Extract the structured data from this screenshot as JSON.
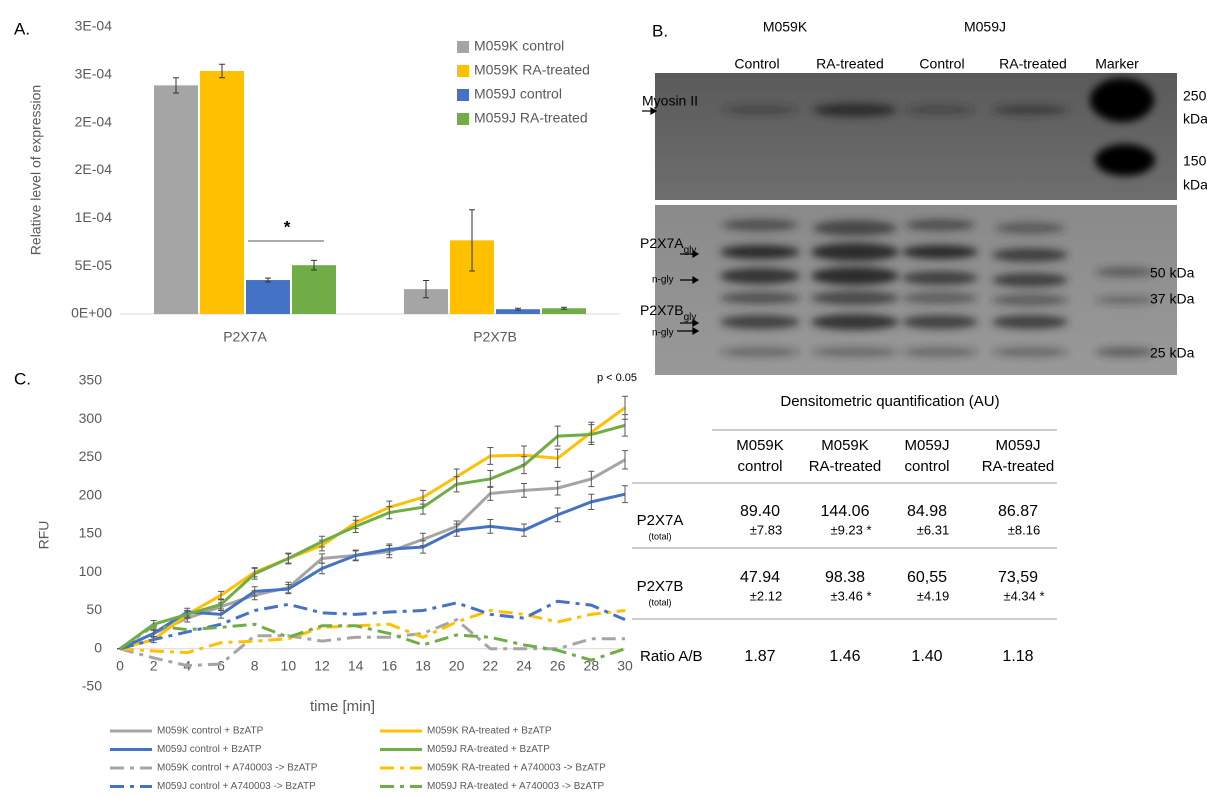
{
  "chart_data": [
    {
      "type": "bar",
      "panel": "A.",
      "y_label": "Relative level of expression",
      "categories": [
        "P2X7A",
        "P2X7B"
      ],
      "series": [
        {
          "name": "M059K control",
          "color": "#a5a5a5",
          "values": [
            0.000239,
            2.6e-05
          ],
          "errors": [
            8e-06,
            9e-06
          ]
        },
        {
          "name": "M059K RA-treated",
          "color": "#ffc000",
          "values": [
            0.000254,
            7.7e-05
          ],
          "errors": [
            7e-06,
            3.2e-05
          ]
        },
        {
          "name": "M059J control",
          "color": "#4472c4",
          "values": [
            3.55e-05,
            5e-06
          ],
          "errors": [
            2e-06,
            1e-06
          ]
        },
        {
          "name": "M059J RA-treated",
          "color": "#70ad47",
          "values": [
            5.1e-05,
            6e-06
          ],
          "errors": [
            5e-06,
            1e-06
          ]
        }
      ],
      "ylim": [
        0,
        0.0003
      ],
      "yticks": [
        {
          "value": 0,
          "label": "0E+00"
        },
        {
          "value": 5e-05,
          "label": "5E-05"
        },
        {
          "value": 0.0001,
          "label": "1E-04"
        },
        {
          "value": 0.00015,
          "label": "2E-04"
        },
        {
          "value": 0.0002,
          "label": "2E-04"
        },
        {
          "value": 0.00025,
          "label": "3E-04"
        },
        {
          "value": 0.0003,
          "label": "3E-04"
        }
      ],
      "annotation": "*",
      "legend": "top-right",
      "grid": false
    },
    {
      "type": "line",
      "panel": "C.",
      "x_label": "time [min]",
      "y_label": "RFU",
      "annotation": "p < 0.05",
      "x": [
        0,
        2,
        4,
        6,
        8,
        10,
        12,
        14,
        16,
        18,
        20,
        22,
        24,
        26,
        28,
        30
      ],
      "xlim": [
        0,
        30
      ],
      "xticks": [
        0,
        2,
        4,
        6,
        8,
        10,
        12,
        14,
        16,
        18,
        20,
        22,
        24,
        26,
        28,
        30
      ],
      "ylim": [
        -50,
        350
      ],
      "yticks": [
        -50,
        0,
        50,
        100,
        150,
        200,
        250,
        300,
        350
      ],
      "grid": false,
      "legend": "bottom",
      "series": [
        {
          "name": "M059K control + BzATP",
          "color": "#a5a5a5",
          "style": "solid",
          "values": [
            0,
            20,
            40,
            55,
            70,
            80,
            118,
            122,
            127,
            143,
            160,
            203,
            207,
            210,
            222,
            247
          ],
          "errors": [
            0,
            5,
            5,
            5,
            6,
            7,
            6,
            6,
            8,
            8,
            7,
            9,
            9,
            9,
            10,
            12
          ]
        },
        {
          "name": "M059K RA-treated + BzATP",
          "color": "#ffc000",
          "style": "solid",
          "values": [
            0,
            12,
            45,
            70,
            100,
            118,
            135,
            165,
            185,
            198,
            225,
            252,
            253,
            249,
            283,
            315
          ],
          "errors": [
            0,
            4,
            4,
            5,
            6,
            6,
            7,
            8,
            8,
            9,
            10,
            11,
            12,
            12,
            13,
            15
          ]
        },
        {
          "name": "M059J control + BzATP",
          "color": "#4472c4",
          "style": "solid",
          "values": [
            0,
            20,
            48,
            45,
            75,
            78,
            105,
            122,
            130,
            133,
            155,
            160,
            155,
            175,
            192,
            202
          ],
          "errors": [
            0,
            4,
            5,
            5,
            6,
            6,
            7,
            7,
            7,
            8,
            8,
            9,
            8,
            9,
            10,
            11
          ]
        },
        {
          "name": "M059J RA-treated + BzATP",
          "color": "#70ad47",
          "style": "solid",
          "values": [
            0,
            32,
            45,
            58,
            98,
            118,
            140,
            160,
            178,
            185,
            215,
            222,
            240,
            278,
            280,
            292
          ],
          "errors": [
            0,
            5,
            5,
            6,
            7,
            7,
            7,
            8,
            8,
            9,
            10,
            11,
            11,
            13,
            13,
            14
          ]
        },
        {
          "name": "M059K control + A740003 -> BzATP",
          "color": "#a5a5a5",
          "style": "dashdot",
          "values": [
            0,
            -12,
            -22,
            -20,
            17,
            17,
            10,
            15,
            15,
            20,
            38,
            0,
            0,
            0,
            13,
            13
          ]
        },
        {
          "name": "M059K RA-treated + A740003 -> BzATP",
          "color": "#ffc000",
          "style": "dashdot",
          "values": [
            0,
            -3,
            -5,
            8,
            10,
            13,
            28,
            30,
            32,
            15,
            35,
            50,
            45,
            35,
            45,
            50
          ]
        },
        {
          "name": "M059J control + A740003 -> BzATP",
          "color": "#4472c4",
          "style": "dashdot",
          "values": [
            0,
            12,
            22,
            32,
            50,
            58,
            47,
            45,
            48,
            50,
            60,
            45,
            40,
            62,
            57,
            38
          ]
        },
        {
          "name": "M059J RA-treated + A740003 -> BzATP",
          "color": "#70ad47",
          "style": "dashdot",
          "values": [
            0,
            30,
            25,
            28,
            32,
            15,
            30,
            30,
            20,
            5,
            18,
            15,
            5,
            -2,
            -15,
            0
          ]
        }
      ]
    }
  ],
  "blot": {
    "panel": "B.",
    "groups": [
      "M059K",
      "M059J"
    ],
    "lanes": [
      "Control",
      "RA-treated",
      "Control",
      "RA-treated",
      "Marker"
    ],
    "left_labels": [
      {
        "main": "Myosin II"
      },
      {
        "main": "P2X7A",
        "sub": "gly"
      },
      {
        "main": "n-gly"
      },
      {
        "main": "P2X7B",
        "sub": "gly"
      },
      {
        "main": "n-gly"
      }
    ],
    "right_labels": [
      [
        "250",
        "kDa"
      ],
      [
        "150",
        "kDa"
      ],
      [
        "50 kDa"
      ],
      [
        "37 kDa"
      ],
      [
        "25 kDa"
      ]
    ]
  },
  "table": {
    "title": "Densitometric quantification (AU)",
    "columns": [
      [
        "M059K",
        "control"
      ],
      [
        "M059K",
        "RA-treated"
      ],
      [
        "M059J",
        "control"
      ],
      [
        "M059J",
        "RA-treated"
      ]
    ],
    "rows": [
      {
        "label": "P2X7A",
        "note": "(total)",
        "cells": [
          [
            "89.40",
            "±7.83"
          ],
          [
            "144.06",
            "±9.23 *"
          ],
          [
            "84.98",
            "±6.31"
          ],
          [
            "86.87",
            "±8.16"
          ]
        ]
      },
      {
        "label": "P2X7B",
        "note": "(total)",
        "cells": [
          [
            "47.94",
            "±2.12"
          ],
          [
            "98.38",
            "±3.46 *"
          ],
          [
            "60,55",
            "±4.19"
          ],
          [
            "73,59",
            "±4.34 *"
          ]
        ]
      },
      {
        "label": "Ratio A/B",
        "cells": [
          [
            "1.87"
          ],
          [
            "1.46"
          ],
          [
            "1.40"
          ],
          [
            "1.18"
          ]
        ]
      }
    ]
  }
}
